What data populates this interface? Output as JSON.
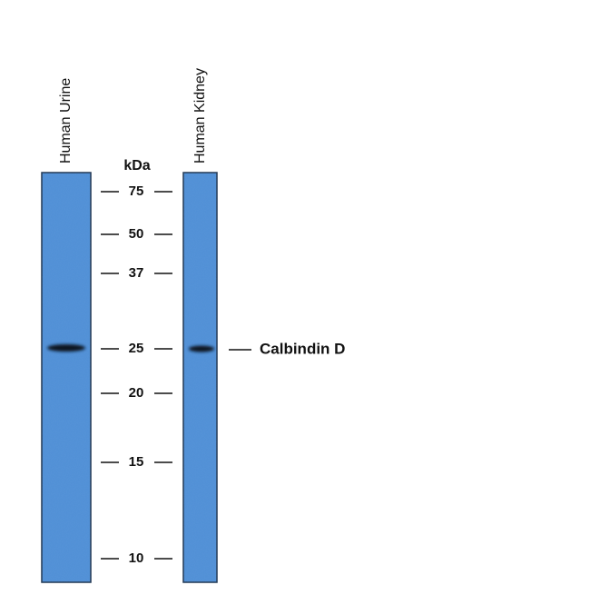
{
  "lanes": [
    {
      "label": "Human Urine"
    },
    {
      "label": "Human Kidney"
    }
  ],
  "marker_unit": "kDa",
  "markers": [
    75,
    50,
    37,
    25,
    20,
    15,
    10
  ],
  "band_label": "Calbindin D"
}
